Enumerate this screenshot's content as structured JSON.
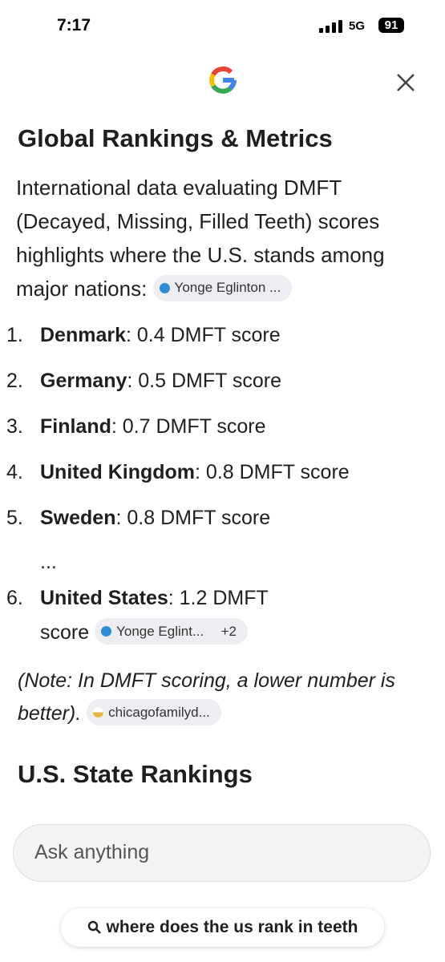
{
  "status_bar": {
    "time": "7:17",
    "network": "5G",
    "battery": "91"
  },
  "sections": [
    {
      "heading": "Global Rankings & Metrics",
      "intro": "International data evaluating DMFT (Decayed, Missing, Filled Teeth) scores highlights where the U.S. stands among major nations:",
      "intro_source": "Yonge Eglinton ...",
      "list": [
        {
          "marker": "1.",
          "name": "Denmark",
          "text": ": 0.4 DMFT score"
        },
        {
          "marker": "2.",
          "name": "Germany",
          "text": ": 0.5 DMFT score"
        },
        {
          "marker": "3.",
          "name": "Finland",
          "text": ": 0.7 DMFT score"
        },
        {
          "marker": "4.",
          "name": "United Kingdom",
          "text": ": 0.8 DMFT score"
        },
        {
          "marker": "5.",
          "name": "Sweden",
          "text": ": 0.8 DMFT score"
        }
      ],
      "ellipsis": "...",
      "last_item": {
        "marker": "6.",
        "name": "United States",
        "text": ": 1.2 DMFT score",
        "source": "Yonge Eglint...",
        "more_sources": "+2"
      },
      "note": "(Note: In DMFT scoring, a lower number is better).",
      "note_source": "chicagofamilyd..."
    },
    {
      "heading": "U.S. State Rankings"
    }
  ],
  "input": {
    "placeholder": "Ask anything"
  },
  "query": "where does the us rank in teeth"
}
